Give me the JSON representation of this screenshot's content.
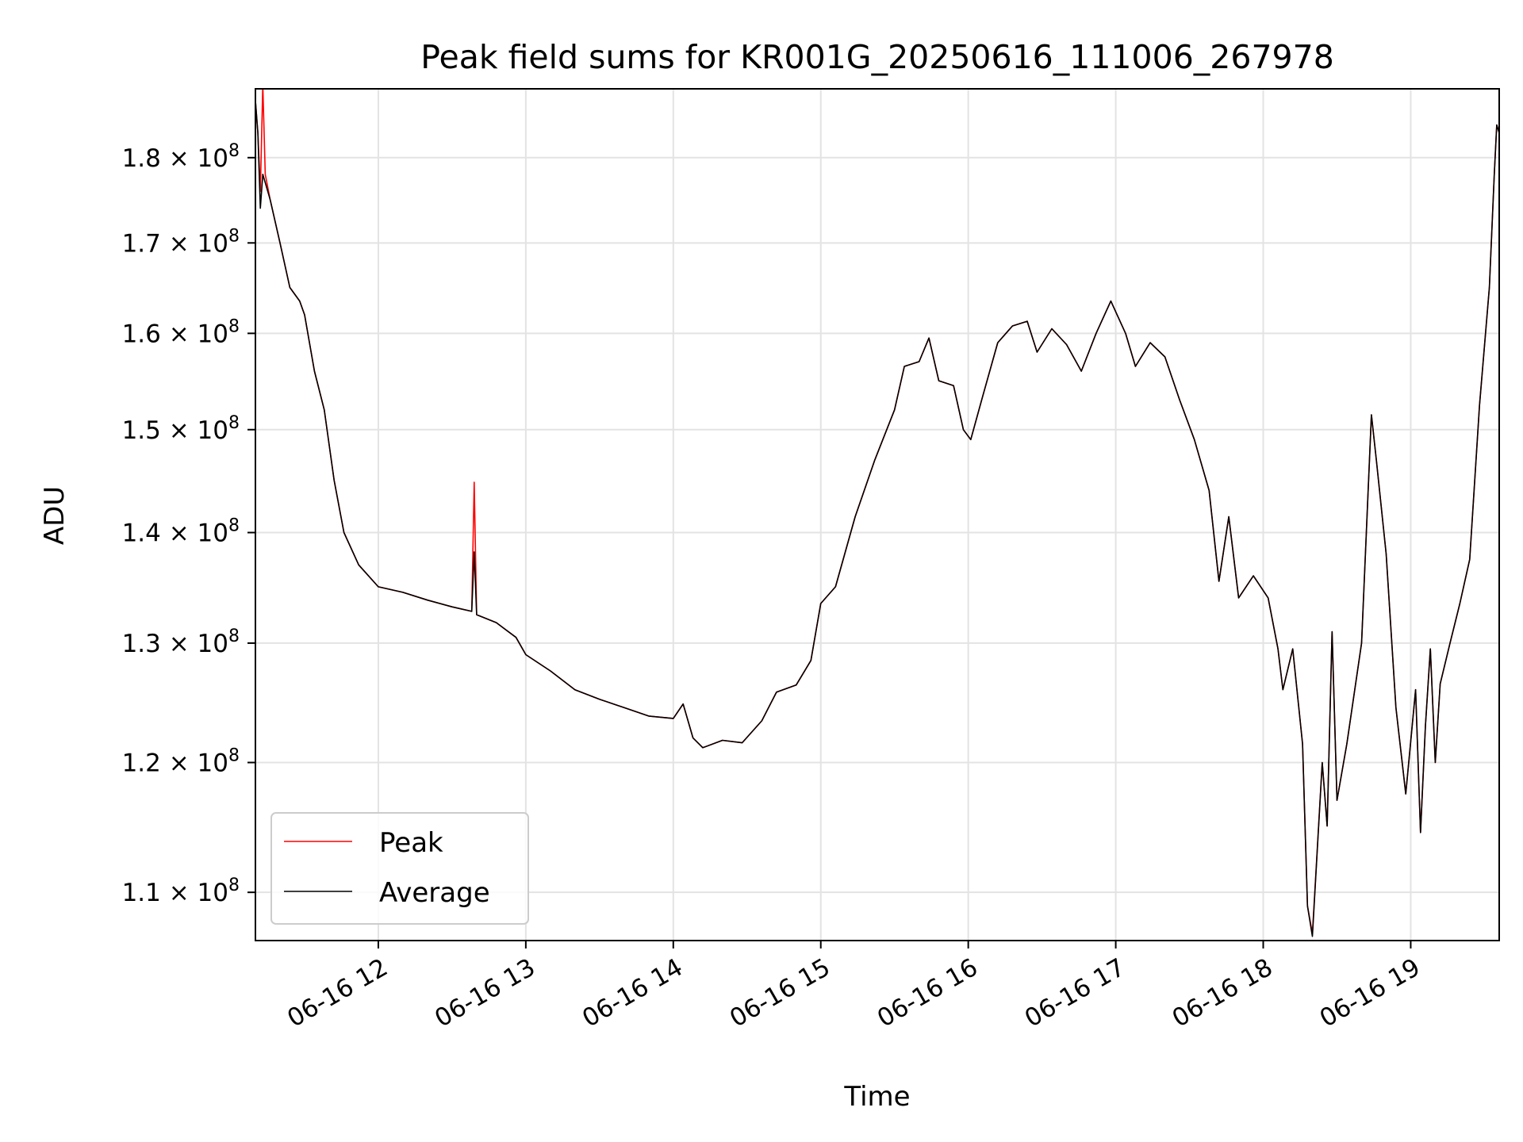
{
  "chart_data": {
    "type": "line",
    "title": "Peak field sums for KR001G_20250616_111006_267978",
    "xlabel": "Time",
    "ylabel": "ADU",
    "xaxis": {
      "kind": "time",
      "range": [
        "2025-06-16 11:10",
        "2025-06-16 19:36"
      ],
      "ticks": [
        {
          "time": "2025-06-16 12:00",
          "label": "06-16 12"
        },
        {
          "time": "2025-06-16 13:00",
          "label": "06-16 13"
        },
        {
          "time": "2025-06-16 14:00",
          "label": "06-16 14"
        },
        {
          "time": "2025-06-16 15:00",
          "label": "06-16 15"
        },
        {
          "time": "2025-06-16 16:00",
          "label": "06-16 16"
        },
        {
          "time": "2025-06-16 17:00",
          "label": "06-16 17"
        },
        {
          "time": "2025-06-16 18:00",
          "label": "06-16 18"
        },
        {
          "time": "2025-06-16 19:00",
          "label": "06-16 19"
        }
      ]
    },
    "yaxis": {
      "scale": "log",
      "range": [
        106500000,
        188500000
      ],
      "ticks": [
        {
          "value": 110000000,
          "mantissa": "1.1",
          "exp": "8"
        },
        {
          "value": 120000000,
          "mantissa": "1.2",
          "exp": "8"
        },
        {
          "value": 130000000,
          "mantissa": "1.3",
          "exp": "8"
        },
        {
          "value": 140000000,
          "mantissa": "1.4",
          "exp": "8"
        },
        {
          "value": 150000000,
          "mantissa": "1.5",
          "exp": "8"
        },
        {
          "value": 160000000,
          "mantissa": "1.6",
          "exp": "8"
        },
        {
          "value": 170000000,
          "mantissa": "1.7",
          "exp": "8"
        },
        {
          "value": 180000000,
          "mantissa": "1.8",
          "exp": "8"
        }
      ]
    },
    "grid": true,
    "legend_position": "lower-left",
    "series": [
      {
        "name": "Peak",
        "color": "#ff0000",
        "points": [
          [
            "2025-06-16 11:10",
            187000000
          ],
          [
            "2025-06-16 11:11",
            183000000
          ],
          [
            "2025-06-16 11:12",
            176000000
          ],
          [
            "2025-06-16 11:13",
            189000000
          ],
          [
            "2025-06-16 11:14",
            178000000
          ],
          [
            "2025-06-16 11:16",
            175000000
          ],
          [
            "2025-06-16 11:20",
            170000000
          ],
          [
            "2025-06-16 11:24",
            165000000
          ],
          [
            "2025-06-16 11:28",
            163500000
          ],
          [
            "2025-06-16 11:30",
            162000000
          ],
          [
            "2025-06-16 11:34",
            156000000
          ],
          [
            "2025-06-16 11:38",
            152000000
          ],
          [
            "2025-06-16 11:42",
            145000000
          ],
          [
            "2025-06-16 11:46",
            140000000
          ],
          [
            "2025-06-16 11:52",
            137000000
          ],
          [
            "2025-06-16 12:00",
            135000000
          ],
          [
            "2025-06-16 12:10",
            134500000
          ],
          [
            "2025-06-16 12:20",
            133800000
          ],
          [
            "2025-06-16 12:30",
            133200000
          ],
          [
            "2025-06-16 12:38",
            132800000
          ],
          [
            "2025-06-16 12:39",
            144800000
          ],
          [
            "2025-06-16 12:40",
            132500000
          ],
          [
            "2025-06-16 12:48",
            131800000
          ],
          [
            "2025-06-16 12:56",
            130500000
          ],
          [
            "2025-06-16 13:00",
            129000000
          ],
          [
            "2025-06-16 13:10",
            127600000
          ],
          [
            "2025-06-16 13:20",
            126000000
          ],
          [
            "2025-06-16 13:30",
            125200000
          ],
          [
            "2025-06-16 13:40",
            124500000
          ],
          [
            "2025-06-16 13:50",
            123800000
          ],
          [
            "2025-06-16 14:00",
            123600000
          ],
          [
            "2025-06-16 14:04",
            124800000
          ],
          [
            "2025-06-16 14:08",
            122000000
          ],
          [
            "2025-06-16 14:12",
            121200000
          ],
          [
            "2025-06-16 14:20",
            121800000
          ],
          [
            "2025-06-16 14:28",
            121600000
          ],
          [
            "2025-06-16 14:36",
            123400000
          ],
          [
            "2025-06-16 14:42",
            125800000
          ],
          [
            "2025-06-16 14:50",
            126400000
          ],
          [
            "2025-06-16 14:56",
            128500000
          ],
          [
            "2025-06-16 15:00",
            133500000
          ],
          [
            "2025-06-16 15:06",
            135000000
          ],
          [
            "2025-06-16 15:14",
            141500000
          ],
          [
            "2025-06-16 15:22",
            147000000
          ],
          [
            "2025-06-16 15:30",
            152000000
          ],
          [
            "2025-06-16 15:34",
            156500000
          ],
          [
            "2025-06-16 15:40",
            157000000
          ],
          [
            "2025-06-16 15:44",
            159500000
          ],
          [
            "2025-06-16 15:48",
            155000000
          ],
          [
            "2025-06-16 15:54",
            154500000
          ],
          [
            "2025-06-16 15:58",
            150000000
          ],
          [
            "2025-06-16 16:01",
            149000000
          ],
          [
            "2025-06-16 16:06",
            153500000
          ],
          [
            "2025-06-16 16:12",
            159000000
          ],
          [
            "2025-06-16 16:18",
            160800000
          ],
          [
            "2025-06-16 16:24",
            161300000
          ],
          [
            "2025-06-16 16:28",
            158000000
          ],
          [
            "2025-06-16 16:34",
            160500000
          ],
          [
            "2025-06-16 16:40",
            158800000
          ],
          [
            "2025-06-16 16:46",
            156000000
          ],
          [
            "2025-06-16 16:52",
            160000000
          ],
          [
            "2025-06-16 16:58",
            163500000
          ],
          [
            "2025-06-16 17:04",
            160000000
          ],
          [
            "2025-06-16 17:08",
            156500000
          ],
          [
            "2025-06-16 17:14",
            159000000
          ],
          [
            "2025-06-16 17:20",
            157500000
          ],
          [
            "2025-06-16 17:26",
            153000000
          ],
          [
            "2025-06-16 17:32",
            149000000
          ],
          [
            "2025-06-16 17:38",
            144000000
          ],
          [
            "2025-06-16 17:42",
            135500000
          ],
          [
            "2025-06-16 17:46",
            141500000
          ],
          [
            "2025-06-16 17:50",
            134000000
          ],
          [
            "2025-06-16 17:56",
            136000000
          ],
          [
            "2025-06-16 18:02",
            134000000
          ],
          [
            "2025-06-16 18:06",
            129500000
          ],
          [
            "2025-06-16 18:08",
            126000000
          ],
          [
            "2025-06-16 18:12",
            129500000
          ],
          [
            "2025-06-16 18:16",
            121500000
          ],
          [
            "2025-06-16 18:18",
            109000000
          ],
          [
            "2025-06-16 18:20",
            107000000
          ],
          [
            "2025-06-16 18:24",
            120000000
          ],
          [
            "2025-06-16 18:26",
            115000000
          ],
          [
            "2025-06-16 18:28",
            131000000
          ],
          [
            "2025-06-16 18:30",
            117000000
          ],
          [
            "2025-06-16 18:34",
            121500000
          ],
          [
            "2025-06-16 18:40",
            130000000
          ],
          [
            "2025-06-16 18:44",
            151500000
          ],
          [
            "2025-06-16 18:46",
            147000000
          ],
          [
            "2025-06-16 18:50",
            138000000
          ],
          [
            "2025-06-16 18:54",
            124500000
          ],
          [
            "2025-06-16 18:58",
            117500000
          ],
          [
            "2025-06-16 19:02",
            126000000
          ],
          [
            "2025-06-16 19:04",
            114500000
          ],
          [
            "2025-06-16 19:06",
            123000000
          ],
          [
            "2025-06-16 19:08",
            129500000
          ],
          [
            "2025-06-16 19:10",
            120000000
          ],
          [
            "2025-06-16 19:12",
            126500000
          ],
          [
            "2025-06-16 19:16",
            130000000
          ],
          [
            "2025-06-16 19:20",
            133500000
          ],
          [
            "2025-06-16 19:24",
            137500000
          ],
          [
            "2025-06-16 19:28",
            152500000
          ],
          [
            "2025-06-16 19:32",
            165000000
          ],
          [
            "2025-06-16 19:34",
            178000000
          ],
          [
            "2025-06-16 19:35",
            184000000
          ],
          [
            "2025-06-16 19:36",
            183000000
          ]
        ]
      },
      {
        "name": "Average",
        "color": "#000000",
        "points": [
          [
            "2025-06-16 11:10",
            187000000
          ],
          [
            "2025-06-16 11:11",
            183000000
          ],
          [
            "2025-06-16 11:12",
            174000000
          ],
          [
            "2025-06-16 11:13",
            178000000
          ],
          [
            "2025-06-16 11:14",
            177000000
          ],
          [
            "2025-06-16 11:16",
            175000000
          ],
          [
            "2025-06-16 11:20",
            170000000
          ],
          [
            "2025-06-16 11:24",
            165000000
          ],
          [
            "2025-06-16 11:28",
            163500000
          ],
          [
            "2025-06-16 11:30",
            162000000
          ],
          [
            "2025-06-16 11:34",
            156000000
          ],
          [
            "2025-06-16 11:38",
            152000000
          ],
          [
            "2025-06-16 11:42",
            145000000
          ],
          [
            "2025-06-16 11:46",
            140000000
          ],
          [
            "2025-06-16 11:52",
            137000000
          ],
          [
            "2025-06-16 12:00",
            135000000
          ],
          [
            "2025-06-16 12:10",
            134500000
          ],
          [
            "2025-06-16 12:20",
            133800000
          ],
          [
            "2025-06-16 12:30",
            133200000
          ],
          [
            "2025-06-16 12:38",
            132800000
          ],
          [
            "2025-06-16 12:39",
            138200000
          ],
          [
            "2025-06-16 12:40",
            132500000
          ],
          [
            "2025-06-16 12:48",
            131800000
          ],
          [
            "2025-06-16 12:56",
            130500000
          ],
          [
            "2025-06-16 13:00",
            129000000
          ],
          [
            "2025-06-16 13:10",
            127600000
          ],
          [
            "2025-06-16 13:20",
            126000000
          ],
          [
            "2025-06-16 13:30",
            125200000
          ],
          [
            "2025-06-16 13:40",
            124500000
          ],
          [
            "2025-06-16 13:50",
            123800000
          ],
          [
            "2025-06-16 14:00",
            123600000
          ],
          [
            "2025-06-16 14:04",
            124800000
          ],
          [
            "2025-06-16 14:08",
            122000000
          ],
          [
            "2025-06-16 14:12",
            121200000
          ],
          [
            "2025-06-16 14:20",
            121800000
          ],
          [
            "2025-06-16 14:28",
            121600000
          ],
          [
            "2025-06-16 14:36",
            123400000
          ],
          [
            "2025-06-16 14:42",
            125800000
          ],
          [
            "2025-06-16 14:50",
            126400000
          ],
          [
            "2025-06-16 14:56",
            128500000
          ],
          [
            "2025-06-16 15:00",
            133500000
          ],
          [
            "2025-06-16 15:06",
            135000000
          ],
          [
            "2025-06-16 15:14",
            141500000
          ],
          [
            "2025-06-16 15:22",
            147000000
          ],
          [
            "2025-06-16 15:30",
            152000000
          ],
          [
            "2025-06-16 15:34",
            156500000
          ],
          [
            "2025-06-16 15:40",
            157000000
          ],
          [
            "2025-06-16 15:44",
            159500000
          ],
          [
            "2025-06-16 15:48",
            155000000
          ],
          [
            "2025-06-16 15:54",
            154500000
          ],
          [
            "2025-06-16 15:58",
            150000000
          ],
          [
            "2025-06-16 16:01",
            149000000
          ],
          [
            "2025-06-16 16:06",
            153500000
          ],
          [
            "2025-06-16 16:12",
            159000000
          ],
          [
            "2025-06-16 16:18",
            160800000
          ],
          [
            "2025-06-16 16:24",
            161300000
          ],
          [
            "2025-06-16 16:28",
            158000000
          ],
          [
            "2025-06-16 16:34",
            160500000
          ],
          [
            "2025-06-16 16:40",
            158800000
          ],
          [
            "2025-06-16 16:46",
            156000000
          ],
          [
            "2025-06-16 16:52",
            160000000
          ],
          [
            "2025-06-16 16:58",
            163500000
          ],
          [
            "2025-06-16 17:04",
            160000000
          ],
          [
            "2025-06-16 17:08",
            156500000
          ],
          [
            "2025-06-16 17:14",
            159000000
          ],
          [
            "2025-06-16 17:20",
            157500000
          ],
          [
            "2025-06-16 17:26",
            153000000
          ],
          [
            "2025-06-16 17:32",
            149000000
          ],
          [
            "2025-06-16 17:38",
            144000000
          ],
          [
            "2025-06-16 17:42",
            135500000
          ],
          [
            "2025-06-16 17:46",
            141500000
          ],
          [
            "2025-06-16 17:50",
            134000000
          ],
          [
            "2025-06-16 17:56",
            136000000
          ],
          [
            "2025-06-16 18:02",
            134000000
          ],
          [
            "2025-06-16 18:06",
            129500000
          ],
          [
            "2025-06-16 18:08",
            126000000
          ],
          [
            "2025-06-16 18:12",
            129500000
          ],
          [
            "2025-06-16 18:16",
            121500000
          ],
          [
            "2025-06-16 18:18",
            109000000
          ],
          [
            "2025-06-16 18:20",
            106800000
          ],
          [
            "2025-06-16 18:24",
            120000000
          ],
          [
            "2025-06-16 18:26",
            115000000
          ],
          [
            "2025-06-16 18:28",
            131000000
          ],
          [
            "2025-06-16 18:30",
            117000000
          ],
          [
            "2025-06-16 18:34",
            121500000
          ],
          [
            "2025-06-16 18:40",
            130000000
          ],
          [
            "2025-06-16 18:44",
            151500000
          ],
          [
            "2025-06-16 18:46",
            147000000
          ],
          [
            "2025-06-16 18:50",
            138000000
          ],
          [
            "2025-06-16 18:54",
            124500000
          ],
          [
            "2025-06-16 18:58",
            117500000
          ],
          [
            "2025-06-16 19:02",
            126000000
          ],
          [
            "2025-06-16 19:04",
            114500000
          ],
          [
            "2025-06-16 19:06",
            123000000
          ],
          [
            "2025-06-16 19:08",
            129500000
          ],
          [
            "2025-06-16 19:10",
            120000000
          ],
          [
            "2025-06-16 19:12",
            126500000
          ],
          [
            "2025-06-16 19:16",
            130000000
          ],
          [
            "2025-06-16 19:20",
            133500000
          ],
          [
            "2025-06-16 19:24",
            137500000
          ],
          [
            "2025-06-16 19:28",
            152500000
          ],
          [
            "2025-06-16 19:32",
            165000000
          ],
          [
            "2025-06-16 19:34",
            178000000
          ],
          [
            "2025-06-16 19:35",
            184000000
          ],
          [
            "2025-06-16 19:36",
            183000000
          ]
        ]
      }
    ]
  }
}
